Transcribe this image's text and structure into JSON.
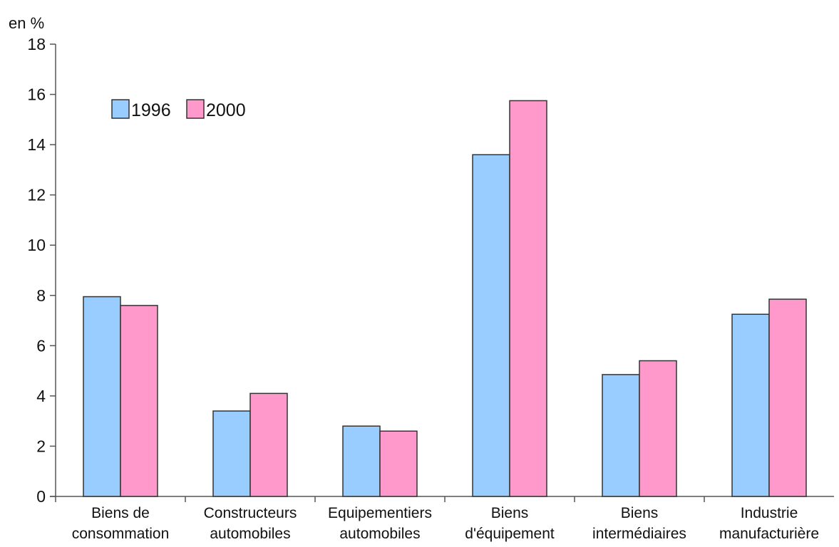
{
  "chart_data": {
    "type": "bar",
    "ylabel": "en %",
    "ylim": [
      0,
      18
    ],
    "yticks": [
      "0",
      "2",
      "4",
      "6",
      "8",
      "10",
      "12",
      "14",
      "16",
      "18"
    ],
    "categories": [
      [
        "Biens de",
        "consommation"
      ],
      [
        "Constructeurs",
        "automobiles"
      ],
      [
        "Equipementiers",
        "automobiles"
      ],
      [
        "Biens",
        "d'équipement"
      ],
      [
        "Biens",
        "intermédiaires"
      ],
      [
        "Industrie",
        "manufacturière"
      ]
    ],
    "series": [
      {
        "name": "1996",
        "color": "#99ccff",
        "values": [
          7.95,
          3.4,
          2.8,
          13.6,
          4.85,
          7.25
        ]
      },
      {
        "name": "2000",
        "color": "#ff99cc",
        "values": [
          7.6,
          4.1,
          2.6,
          15.75,
          5.4,
          7.85
        ]
      }
    ],
    "legend_position": "top-left",
    "grid": false
  }
}
